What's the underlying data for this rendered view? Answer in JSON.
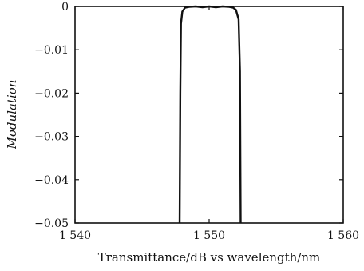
{
  "chart_data": {
    "type": "line",
    "title": "",
    "xlabel": "Transmittance/dB vs wavelength/nm",
    "ylabel": "Modulation",
    "xlim": [
      1540,
      1560
    ],
    "ylim": [
      -0.05,
      0
    ],
    "x_ticks": [
      1540,
      1550,
      1560
    ],
    "x_tick_labels": [
      "1 540",
      "1 550",
      "1 560"
    ],
    "y_ticks": [
      0,
      -0.01,
      -0.02,
      -0.03,
      -0.04,
      -0.05
    ],
    "y_tick_labels": [
      "0",
      "−0.01",
      "−0.02",
      "−0.03",
      "−0.04",
      "−0.05"
    ],
    "grid": false,
    "series": [
      {
        "color": "#111111",
        "x": [
          1547.8,
          1547.85,
          1547.9,
          1548.0,
          1548.2,
          1548.5,
          1549.0,
          1549.5,
          1550.0,
          1550.5,
          1551.0,
          1551.5,
          1551.8,
          1552.0,
          1552.2,
          1552.3,
          1552.35
        ],
        "y": [
          -0.05,
          -0.02,
          -0.004,
          -0.0012,
          -0.0003,
          -0.0001,
          0.0,
          -0.0002,
          0.0,
          -0.0002,
          0.0,
          -0.0001,
          -0.0003,
          -0.0008,
          -0.003,
          -0.015,
          -0.05
        ]
      }
    ]
  }
}
